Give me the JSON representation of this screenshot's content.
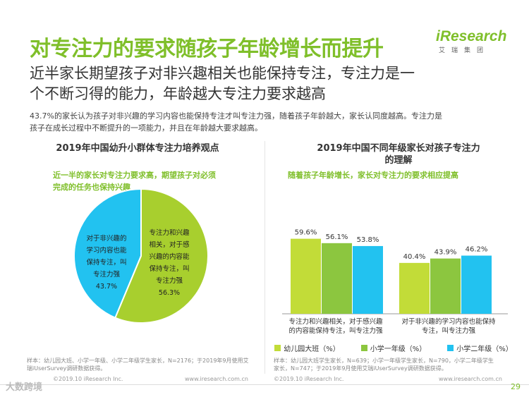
{
  "header": {
    "title": "对专注力的要求随孩子年龄增长而提升",
    "logo_brand": "iResearch",
    "logo_sub": "艾瑞集团",
    "subtitle_line1": "近半家长期望孩子对非兴趣相关也能保持专注，专注力是一",
    "subtitle_line2": "个不断习得的能力，年龄越大专注力要求越高",
    "summary_line1": "43.7%的家长认为孩子对非兴趣的学习内容也能保持专注才叫专注力强，随着孩子年龄越大，家长认同度越高。专注力是",
    "summary_line2": "孩子在成长过程中不断提升的一项能力，并且在年龄越大要求越高。"
  },
  "left_panel": {
    "title": "2019年中国幼升小群体专注力培养观点",
    "highlight_line1": "近一半的家长对专注力要求高，期望孩子对必须",
    "highlight_line2": "完成的任务也保持兴趣",
    "slice_a_lines": [
      "对于非兴趣的",
      "学习内容也能",
      "保持专注，叫",
      "专注力强",
      "43.7%"
    ],
    "slice_b_lines": [
      "专注力和兴趣",
      "相关，对于感",
      "兴趣的内容能",
      "保持专注，叫",
      "专注力强",
      "56.3%"
    ],
    "note_line1": "样本：幼儿园大班、小学一年级、小学二年级学生家长，N=2176；于2019年9月使用艾",
    "note_line2": "瑞iUserSurvey调研数据获得。",
    "footer_left": "©2019.10 iResearch Inc.",
    "footer_right": "www.iresearch.com.cn"
  },
  "right_panel": {
    "title_line1": "2019年中国不同年级家长对孩子专注力",
    "title_line2": "的理解",
    "highlight": "随着孩子年龄增长，家长对专注力的要求相应提高",
    "cat_a_lines": [
      "专注力和兴趣相关，对于感兴趣",
      "的内容能保持专注，叫专注力强"
    ],
    "cat_b_lines": [
      "对于非兴趣的学习内容也能保持",
      "专注，叫专注力强"
    ],
    "note_line1": "样本：幼儿园大班学生家长，N=639；小学一年级学生家长，N=790，小学二年级学生",
    "note_line2": "家长，N=747；于2019年9月使用艾瑞iUserSurvey调研数据获得。",
    "footer_left": "©2019.10 iResearch Inc.",
    "footer_right": "www.iresearch.com.cn"
  },
  "watermark": "大数跨境",
  "page_number": "29",
  "colors": {
    "green_dark": "#7fbf2a",
    "green_mid": "#a2cf3a",
    "green_light": "#c5dd3a",
    "blue": "#22c2f0"
  },
  "chart_data": [
    {
      "type": "pie",
      "title": "2019年中国幼升小群体专注力培养观点",
      "slices": [
        {
          "label": "专注力和兴趣相关，对于感兴趣的内容能保持专注，叫专注力强",
          "value": 56.3,
          "display": "56.3%",
          "color": "#a8cf2e"
        },
        {
          "label": "对于非兴趣的学习内容也能保持专注，叫专注力强",
          "value": 43.7,
          "display": "43.7%",
          "color": "#22c2f0"
        }
      ]
    },
    {
      "type": "bar",
      "title": "2019年中国不同年级家长对孩子专注力的理解",
      "categories": [
        "专注力和兴趣相关，对于感兴趣的内容能保持专注，叫专注力强",
        "对于非兴趣的学习内容也能保持专注，叫专注力强"
      ],
      "series": [
        {
          "name": "幼儿园大班（%）",
          "values": [
            59.6,
            40.4
          ],
          "labels": [
            "59.6%",
            "40.4%"
          ],
          "color": "#c2dc38"
        },
        {
          "name": "小学一年级（%）",
          "values": [
            56.1,
            43.9
          ],
          "labels": [
            "56.1%",
            "43.9%"
          ],
          "color": "#8cc63f"
        },
        {
          "name": "小学二年级（%）",
          "values": [
            53.8,
            46.2
          ],
          "labels": [
            "53.8%",
            "46.2%"
          ],
          "color": "#22c2f0"
        }
      ],
      "ylim": [
        0,
        70
      ],
      "legend": "bottom"
    }
  ]
}
